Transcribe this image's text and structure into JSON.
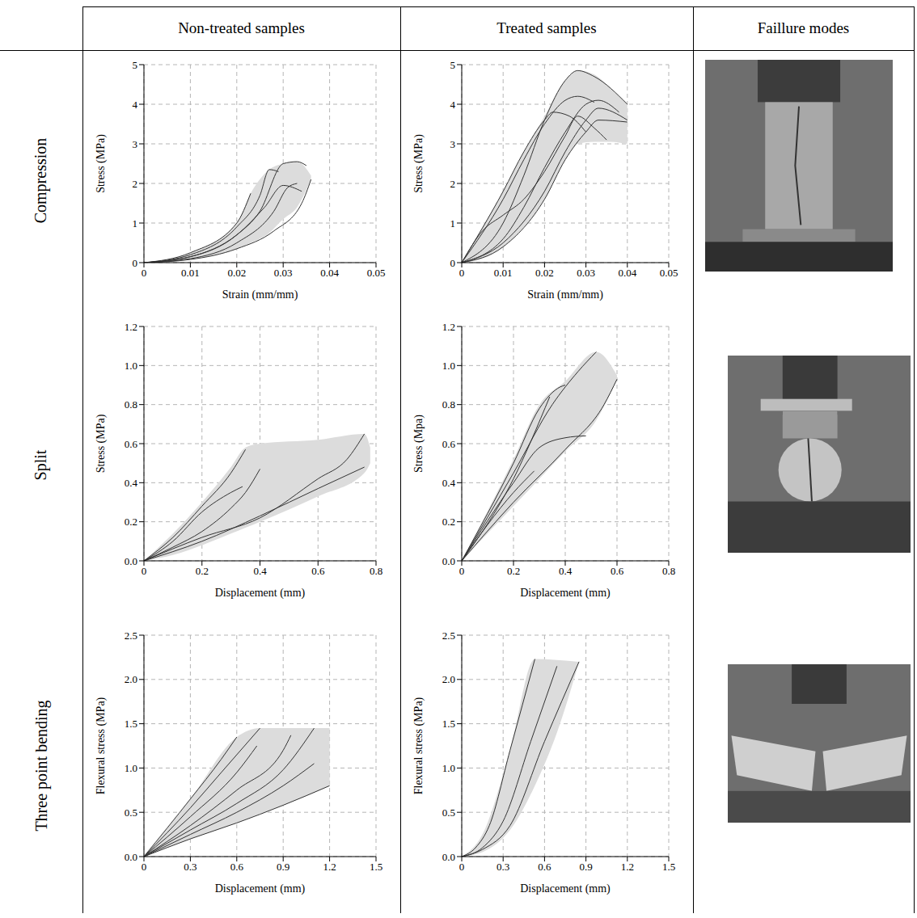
{
  "column_headers": [
    "Non-treated samples",
    "Treated samples",
    "Faillure modes"
  ],
  "row_headers": [
    "Compression",
    "Split",
    "Three point bending"
  ],
  "chart_data": [
    {
      "type": "line",
      "xlabel": "Strain (mm/mm)",
      "ylabel": "Stress (MPa)",
      "xlim": [
        0,
        0.05
      ],
      "xticks": [
        0,
        0.01,
        0.02,
        0.03,
        0.04,
        0.05
      ],
      "ylim": [
        0,
        5
      ],
      "yticks": [
        0,
        1,
        2,
        3,
        4,
        5
      ],
      "grid": true,
      "band": {
        "color": "#dcdcdc",
        "x": [
          0,
          0.01,
          0.02,
          0.023,
          0.027,
          0.03,
          0.033,
          0.036
        ],
        "low": [
          0,
          0.08,
          0.35,
          0.5,
          0.75,
          1.1,
          1.4,
          2.1
        ],
        "high": [
          0,
          0.25,
          1.0,
          1.75,
          2.35,
          2.5,
          2.55,
          2.2
        ]
      },
      "series": [
        {
          "color": "#333333",
          "x": [
            0,
            0.01,
            0.02,
            0.025,
            0.03,
            0.033,
            0.035
          ],
          "values": [
            0,
            0.15,
            0.7,
            1.3,
            2.5,
            2.55,
            2.45
          ]
        },
        {
          "color": "#333333",
          "x": [
            0,
            0.01,
            0.02,
            0.025,
            0.027,
            0.029
          ],
          "values": [
            0,
            0.2,
            0.9,
            1.7,
            2.35,
            2.3
          ]
        },
        {
          "color": "#333333",
          "x": [
            0,
            0.01,
            0.02,
            0.023
          ],
          "values": [
            0,
            0.25,
            1.0,
            1.75
          ]
        },
        {
          "color": "#333333",
          "x": [
            0,
            0.01,
            0.02,
            0.026,
            0.03,
            0.034
          ],
          "values": [
            0,
            0.15,
            0.7,
            1.4,
            1.95,
            1.8
          ]
        },
        {
          "color": "#333333",
          "x": [
            0,
            0.01,
            0.02,
            0.028,
            0.031,
            0.033
          ],
          "values": [
            0,
            0.1,
            0.5,
            1.3,
            1.9,
            2.0
          ]
        },
        {
          "color": "#333333",
          "x": [
            0,
            0.01,
            0.02,
            0.028,
            0.034,
            0.036
          ],
          "values": [
            0,
            0.08,
            0.35,
            0.8,
            1.5,
            2.1
          ]
        }
      ]
    },
    {
      "type": "line",
      "xlabel": "Strain (mm/mm)",
      "ylabel": "Stress (MPa)",
      "xlim": [
        0,
        0.05
      ],
      "xticks": [
        0,
        0.01,
        0.02,
        0.03,
        0.04,
        0.05
      ],
      "ylim": [
        0,
        5
      ],
      "yticks": [
        0,
        1,
        2,
        3,
        4,
        5
      ],
      "grid": true,
      "band": {
        "color": "#dcdcdc",
        "x": [
          0,
          0.005,
          0.01,
          0.015,
          0.02,
          0.025,
          0.028,
          0.032,
          0.036,
          0.04
        ],
        "low": [
          0,
          0.1,
          0.4,
          0.9,
          1.6,
          2.6,
          3.0,
          3.05,
          3.05,
          3.0
        ],
        "high": [
          0,
          0.9,
          1.8,
          2.8,
          3.7,
          4.6,
          4.85,
          4.75,
          4.4,
          4.0
        ]
      },
      "series": [
        {
          "color": "#333333",
          "x": [
            0,
            0.005,
            0.01,
            0.015,
            0.02,
            0.025,
            0.028,
            0.032,
            0.035
          ],
          "values": [
            0,
            0.8,
            1.2,
            1.6,
            2.3,
            3.2,
            3.7,
            3.4,
            3.1
          ]
        },
        {
          "color": "#333333",
          "x": [
            0,
            0.01,
            0.015,
            0.02,
            0.025,
            0.028,
            0.032
          ],
          "values": [
            0,
            1.6,
            2.6,
            3.5,
            4.1,
            4.2,
            4.05
          ]
        },
        {
          "color": "#333333",
          "x": [
            0,
            0.01,
            0.015,
            0.02,
            0.022,
            0.026,
            0.03
          ],
          "values": [
            0,
            1.8,
            2.8,
            3.6,
            3.8,
            3.7,
            3.3
          ]
        },
        {
          "color": "#333333",
          "x": [
            0,
            0.01,
            0.015,
            0.02,
            0.025,
            0.028,
            0.032,
            0.04
          ],
          "values": [
            0,
            1.0,
            2.2,
            3.6,
            4.6,
            4.85,
            4.7,
            4.0
          ]
        },
        {
          "color": "#333333",
          "x": [
            0,
            0.01,
            0.015,
            0.02,
            0.025,
            0.03,
            0.033,
            0.038
          ],
          "values": [
            0,
            0.6,
            1.4,
            2.4,
            3.3,
            4.0,
            4.1,
            3.8
          ]
        },
        {
          "color": "#333333",
          "x": [
            0,
            0.01,
            0.02,
            0.025,
            0.03,
            0.033,
            0.04
          ],
          "values": [
            0,
            0.4,
            1.6,
            2.6,
            3.3,
            3.6,
            3.55
          ]
        },
        {
          "color": "#333333",
          "x": [
            0,
            0.01,
            0.02,
            0.025,
            0.03,
            0.033,
            0.04
          ],
          "values": [
            0,
            0.5,
            1.8,
            2.8,
            3.6,
            3.9,
            3.6
          ]
        }
      ]
    },
    {
      "type": "line",
      "xlabel": "Displacement (mm)",
      "ylabel": "Stress (MPa)",
      "xlim": [
        0,
        0.8
      ],
      "xticks": [
        0,
        0.2,
        0.4,
        0.6,
        0.8
      ],
      "ylim": [
        0,
        1.2
      ],
      "yticks": [
        {
          "value": 0,
          "label": "0.0"
        },
        0.2,
        0.4,
        0.6,
        0.8,
        {
          "value": 1,
          "label": "1.0"
        },
        1.2
      ],
      "grid": true,
      "band": {
        "color": "#dcdcdc",
        "x": [
          0,
          0.1,
          0.2,
          0.3,
          0.35,
          0.4,
          0.6,
          0.76,
          0.78
        ],
        "low": [
          0,
          0.03,
          0.08,
          0.14,
          0.17,
          0.2,
          0.33,
          0.45,
          0.5
        ],
        "high": [
          0,
          0.14,
          0.3,
          0.48,
          0.58,
          0.6,
          0.62,
          0.65,
          0.58
        ]
      },
      "series": [
        {
          "color": "#333333",
          "x": [
            0,
            0.1,
            0.2,
            0.3,
            0.35
          ],
          "values": [
            0,
            0.12,
            0.28,
            0.45,
            0.57
          ]
        },
        {
          "color": "#333333",
          "x": [
            0,
            0.1,
            0.2,
            0.3,
            0.34
          ],
          "values": [
            0,
            0.1,
            0.25,
            0.35,
            0.38
          ]
        },
        {
          "color": "#333333",
          "x": [
            0,
            0.1,
            0.2,
            0.3,
            0.35,
            0.4
          ],
          "values": [
            0,
            0.07,
            0.15,
            0.27,
            0.35,
            0.47
          ]
        },
        {
          "color": "#333333",
          "x": [
            0,
            0.2,
            0.4,
            0.6,
            0.7,
            0.76
          ],
          "values": [
            0,
            0.12,
            0.22,
            0.42,
            0.52,
            0.65
          ]
        },
        {
          "color": "#333333",
          "x": [
            0,
            0.2,
            0.4,
            0.6,
            0.76
          ],
          "values": [
            0,
            0.1,
            0.23,
            0.37,
            0.48
          ]
        }
      ]
    },
    {
      "type": "line",
      "xlabel": "Displacement (mm)",
      "ylabel": "Stress (Mpa)",
      "xlim": [
        0,
        0.8
      ],
      "xticks": [
        0,
        0.2,
        0.4,
        0.6,
        0.8
      ],
      "ylim": [
        0,
        1.2
      ],
      "yticks": [
        {
          "value": 0,
          "label": "0.0"
        },
        0.2,
        0.4,
        0.6,
        0.8,
        {
          "value": 1,
          "label": "1.0"
        },
        1.2
      ],
      "grid": true,
      "band": {
        "color": "#dcdcdc",
        "x": [
          0,
          0.2,
          0.3,
          0.4,
          0.52,
          0.6
        ],
        "low": [
          0,
          0.28,
          0.42,
          0.56,
          0.72,
          0.93
        ],
        "high": [
          0,
          0.52,
          0.8,
          0.92,
          1.07,
          0.95
        ]
      },
      "series": [
        {
          "color": "#333333",
          "x": [
            0,
            0.2,
            0.3,
            0.38,
            0.4
          ],
          "values": [
            0,
            0.5,
            0.78,
            0.89,
            0.9
          ]
        },
        {
          "color": "#333333",
          "x": [
            0,
            0.2,
            0.35,
            0.45,
            0.52
          ],
          "values": [
            0,
            0.45,
            0.8,
            0.97,
            1.07
          ]
        },
        {
          "color": "#333333",
          "x": [
            0,
            0.2,
            0.3,
            0.4,
            0.48
          ],
          "values": [
            0,
            0.4,
            0.58,
            0.63,
            0.64
          ]
        },
        {
          "color": "#333333",
          "x": [
            0,
            0.2,
            0.28
          ],
          "values": [
            0,
            0.35,
            0.46
          ]
        },
        {
          "color": "#333333",
          "x": [
            0,
            0.2,
            0.4,
            0.55,
            0.6
          ],
          "values": [
            0,
            0.3,
            0.57,
            0.8,
            0.93
          ]
        },
        {
          "color": "#333333",
          "x": [
            0,
            0.2,
            0.34
          ],
          "values": [
            0,
            0.42,
            0.84
          ]
        }
      ]
    },
    {
      "type": "line",
      "xlabel": "Displacement (mm)",
      "ylabel": "Flexural stress (MPa)",
      "xlim": [
        0,
        1.5
      ],
      "xticks": [
        0,
        0.3,
        0.6,
        0.9,
        1.2,
        1.5
      ],
      "ylim": [
        0,
        2.5
      ],
      "yticks": [
        {
          "value": 0,
          "label": "0.0"
        },
        0.5,
        {
          "value": 1,
          "label": "1.0"
        },
        1.5,
        {
          "value": 2,
          "label": "2.0"
        },
        2.5
      ],
      "grid": true,
      "band": {
        "color": "#dcdcdc",
        "x": [
          0,
          0.3,
          0.6,
          0.75,
          1.1,
          1.2
        ],
        "low": [
          0,
          0.2,
          0.38,
          0.48,
          0.72,
          0.8
        ],
        "high": [
          0,
          0.65,
          1.35,
          1.45,
          1.45,
          1.45
        ]
      },
      "series": [
        {
          "color": "#333333",
          "x": [
            0,
            0.3,
            0.5,
            0.6
          ],
          "values": [
            0,
            0.65,
            1.1,
            1.35
          ]
        },
        {
          "color": "#333333",
          "x": [
            0,
            0.3,
            0.5,
            0.7,
            0.75
          ],
          "values": [
            0,
            0.55,
            0.95,
            1.35,
            1.45
          ]
        },
        {
          "color": "#333333",
          "x": [
            0,
            0.3,
            0.6,
            0.73
          ],
          "values": [
            0,
            0.45,
            0.95,
            1.25
          ]
        },
        {
          "color": "#333333",
          "x": [
            0,
            0.3,
            0.6,
            0.9,
            0.95
          ],
          "values": [
            0,
            0.35,
            0.75,
            1.2,
            1.37
          ]
        },
        {
          "color": "#333333",
          "x": [
            0,
            0.3,
            0.6,
            0.9,
            1.1
          ],
          "values": [
            0,
            0.3,
            0.6,
            0.98,
            1.45
          ]
        },
        {
          "color": "#333333",
          "x": [
            0,
            0.3,
            0.6,
            0.9,
            1.1
          ],
          "values": [
            0,
            0.25,
            0.5,
            0.8,
            1.05
          ]
        },
        {
          "color": "#333333",
          "x": [
            0,
            0.3,
            0.6,
            0.9,
            1.2
          ],
          "values": [
            0,
            0.2,
            0.38,
            0.58,
            0.8
          ]
        }
      ]
    },
    {
      "type": "line",
      "xlabel": "Displacement (mm)",
      "ylabel": "Flexural stress (MPa)",
      "xlim": [
        0,
        1.5
      ],
      "xticks": [
        0,
        0.3,
        0.6,
        0.9,
        1.2,
        1.5
      ],
      "ylim": [
        0,
        2.5
      ],
      "yticks": [
        {
          "value": 0,
          "label": "0.0"
        },
        0.5,
        {
          "value": 1,
          "label": "1.0"
        },
        1.5,
        {
          "value": 2,
          "label": "2.0"
        },
        2.5
      ],
      "grid": true,
      "band": {
        "color": "#dcdcdc",
        "x": [
          0,
          0.15,
          0.35,
          0.53,
          0.69,
          0.85
        ],
        "low": [
          0,
          0.05,
          0.3,
          0.8,
          1.4,
          2.2
        ],
        "high": [
          0,
          0.25,
          1.2,
          2.23,
          2.22,
          2.2
        ]
      },
      "series": [
        {
          "color": "#333333",
          "x": [
            0,
            0.1,
            0.2,
            0.35,
            0.53
          ],
          "values": [
            0,
            0.1,
            0.35,
            1.2,
            2.23
          ]
        },
        {
          "color": "#333333",
          "x": [
            0,
            0.15,
            0.3,
            0.5,
            0.69
          ],
          "values": [
            0,
            0.1,
            0.4,
            1.3,
            2.15
          ]
        },
        {
          "color": "#333333",
          "x": [
            0,
            0.15,
            0.35,
            0.6,
            0.85
          ],
          "values": [
            0,
            0.08,
            0.35,
            1.3,
            2.2
          ]
        }
      ]
    }
  ]
}
